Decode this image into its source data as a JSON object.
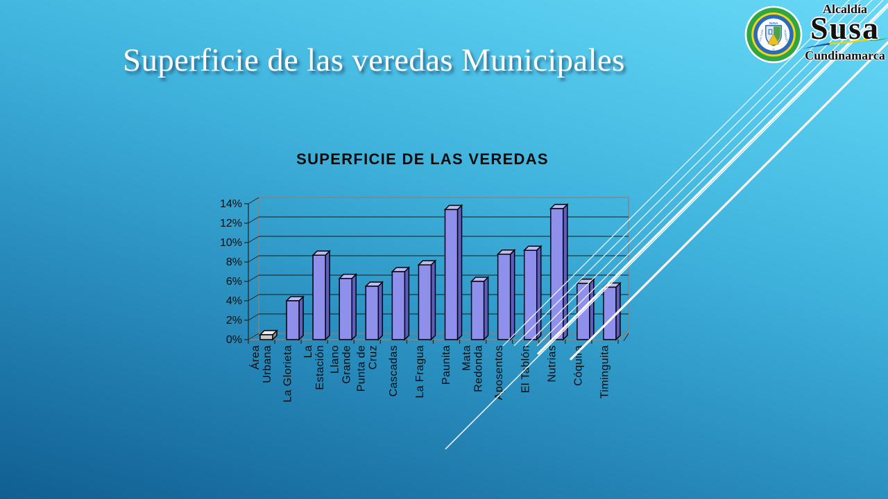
{
  "slide": {
    "title": "Superficie de las veredas Municipales"
  },
  "logo": {
    "line1": "Alcaldía",
    "name": "Susa",
    "region": "Cundinamarca",
    "emblem_banner": "SUSA",
    "emblem_left": "CULTURA",
    "emblem_right": "TRABAJO",
    "emblem_bottom": "Y",
    "colors": {
      "ring_green": "#2FA643",
      "ring_yellow": "#F2D51E",
      "ring_blue": "#2B6CB8",
      "swoosh_blue": "#1F4FA8",
      "swoosh_yellow": "#EDD500",
      "swoosh_green": "#2FA643"
    }
  },
  "chart_data": {
    "type": "bar",
    "style": "3d-column",
    "title": "SUPERFICIE DE LAS VEREDAS",
    "unit": "%",
    "categories": [
      "Área Urbana",
      "La Glorieta",
      "La Estación",
      "Llano Grande",
      "Punta de Cruz",
      "Cascadas",
      "La Fragua",
      "Paunita",
      "Mata Redonda",
      "Aposentos",
      "El Tablón",
      "Nutrias",
      "Cóquira",
      "Timinguita"
    ],
    "categories_wrapped": [
      [
        "Área",
        "Urbana"
      ],
      [
        "La Glorieta"
      ],
      [
        "La",
        "Estación"
      ],
      [
        "Llano",
        "Grande"
      ],
      [
        "Punta de",
        "Cruz"
      ],
      [
        "Cascadas"
      ],
      [
        "La Fragua"
      ],
      [
        "Paunita"
      ],
      [
        "Mata",
        "Redonda"
      ],
      [
        "Aposentos"
      ],
      [
        "El Tablón"
      ],
      [
        "Nutrias"
      ],
      [
        "Cóquira"
      ],
      [
        "Timinguita"
      ]
    ],
    "values": [
      0.5,
      4.0,
      8.7,
      6.3,
      5.5,
      7.0,
      7.7,
      13.4,
      6.0,
      8.8,
      9.2,
      13.5,
      5.8,
      5.4
    ],
    "ylim": [
      0,
      14
    ],
    "ytick_step": 2,
    "ytick_labels": [
      "0%",
      "2%",
      "4%",
      "6%",
      "8%",
      "10%",
      "12%",
      "14%"
    ],
    "legend": "none",
    "palette": {
      "bar_front": "#8F8FEC",
      "bar_side": "#5F5FBB",
      "bar_top": "#BCBCF6",
      "bar_outline": "#000000",
      "first_bar_front": "#C9C9C9",
      "first_bar_side": "#8F8F8F",
      "first_bar_top": "#EDEDED",
      "wall_frame": "#8A8180",
      "floor_edge": "#9B8078",
      "gridline": "#1A1A1A",
      "axis": "#222222",
      "label_color": "#0A0A0A"
    }
  }
}
